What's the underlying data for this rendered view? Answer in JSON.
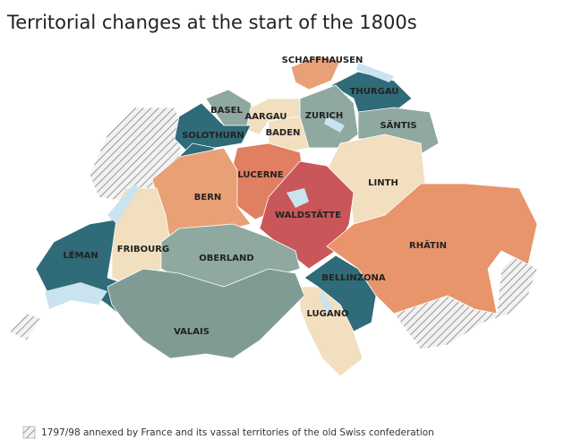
{
  "title": "Territorial changes at the start of the 1800s",
  "regions": [
    {
      "label": "SCHAFFHAUSEN"
    },
    {
      "label": "THURGAU"
    },
    {
      "label": "BASEL"
    },
    {
      "label": "AARGAU"
    },
    {
      "label": "ZURICH"
    },
    {
      "label": "SÄNTIS"
    },
    {
      "label": "SOLOTHURN"
    },
    {
      "label": "BADEN"
    },
    {
      "label": "LUCERNE"
    },
    {
      "label": "BERN"
    },
    {
      "label": "LINTH"
    },
    {
      "label": "WALDSTÄTTE"
    },
    {
      "label": "RHÄTIN"
    },
    {
      "label": "FRIBOURG"
    },
    {
      "label": "LÉMAN"
    },
    {
      "label": "OBERLAND"
    },
    {
      "label": "BELLINZONA"
    },
    {
      "label": "LUGANO"
    },
    {
      "label": "VALAIS"
    }
  ],
  "legend": {
    "label": "1797/98 annexed by France and its vassal territories of the old Swiss confederation"
  }
}
